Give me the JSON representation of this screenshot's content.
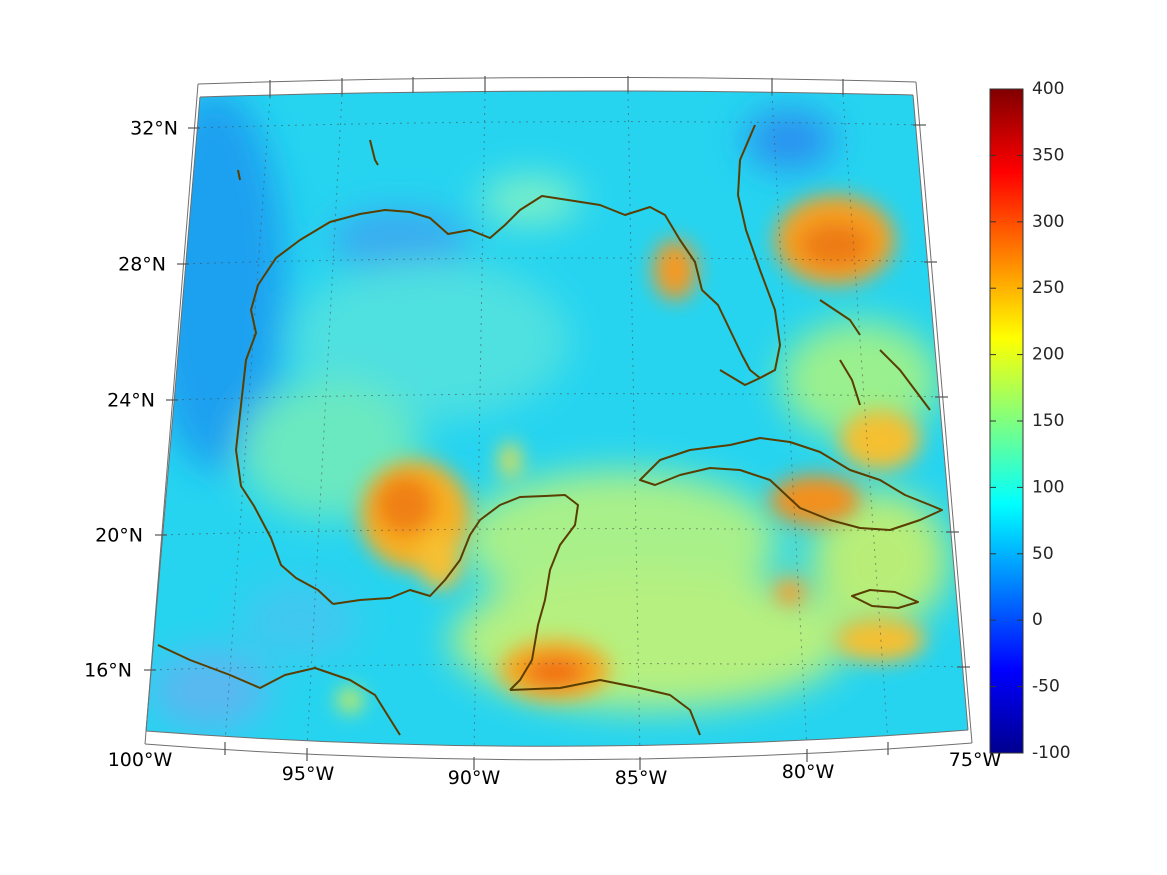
{
  "map": {
    "projection": "lambert-conic",
    "extent": {
      "lon": [
        -100,
        -75
      ],
      "lat": [
        14,
        33
      ]
    },
    "background": "colored-field",
    "coastline_color": "#5a3e00",
    "grid": {
      "visible": true,
      "style": "dotted"
    },
    "lat_ticks": [
      {
        "value": 32,
        "label": "32°N"
      },
      {
        "value": 28,
        "label": "28°N"
      },
      {
        "value": 24,
        "label": "24°N"
      },
      {
        "value": 20,
        "label": "20°N"
      },
      {
        "value": 16,
        "label": "16°N"
      }
    ],
    "lon_ticks": [
      {
        "value": -100,
        "label": "100°W"
      },
      {
        "value": -95,
        "label": "95°W"
      },
      {
        "value": -90,
        "label": "90°W"
      },
      {
        "value": -85,
        "label": "85°W"
      },
      {
        "value": -80,
        "label": "80°W"
      },
      {
        "value": -75,
        "label": "75°W"
      }
    ]
  },
  "colorbar": {
    "colormap": "jet",
    "range": [
      -100,
      400
    ],
    "labels": [
      "400",
      "350",
      "300",
      "250",
      "200",
      "150",
      "100",
      "50",
      "0",
      "-50",
      "-100"
    ]
  }
}
